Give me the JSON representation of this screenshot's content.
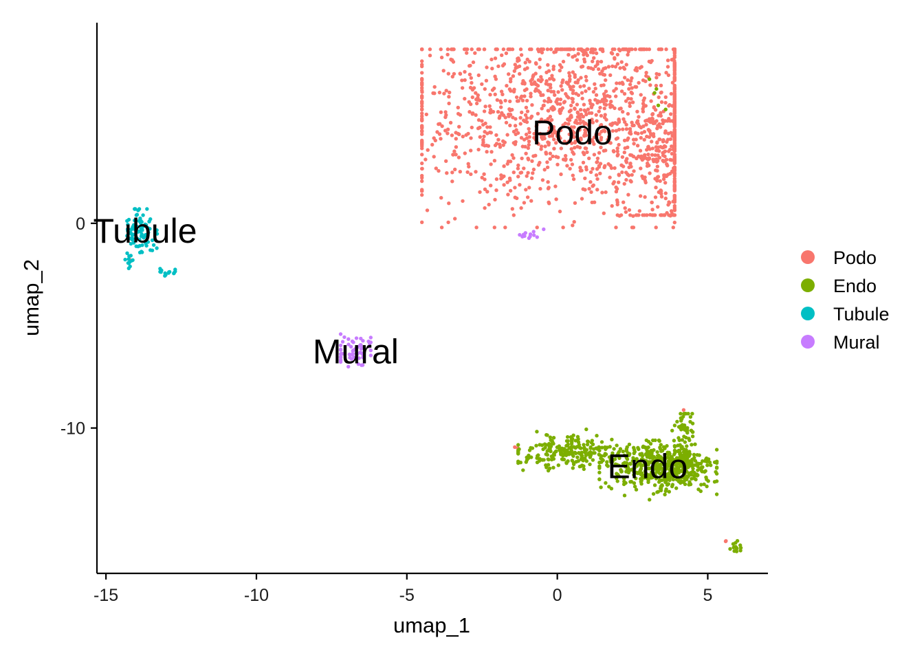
{
  "chart_data": {
    "type": "scatter",
    "title": "",
    "xlabel": "umap_1",
    "ylabel": "umap_2",
    "xlim": [
      -15.3,
      7.0
    ],
    "ylim": [
      -17.1,
      9.8
    ],
    "xticks": [
      -15,
      -10,
      -5,
      0,
      5
    ],
    "xtick_labels": [
      "-15",
      "-10",
      "-5",
      "0",
      "5"
    ],
    "yticks": [
      0,
      -10
    ],
    "ytick_labels": [
      "0",
      "-10"
    ],
    "grid": false,
    "legend_position": "right",
    "series": [
      {
        "name": "Podo",
        "color": "#F8766D",
        "clusters": [
          {
            "cx": 0.8,
            "cy": 5.3,
            "sx": 3.0,
            "sy": 2.3,
            "n": 1400,
            "range_x": [
              -4.5,
              3.9
            ],
            "range_y": [
              -0.2,
              8.5
            ]
          },
          {
            "cx": 3.4,
            "cy": 2.5,
            "sx": 0.7,
            "sy": 1.8,
            "n": 180,
            "range_x": [
              2.0,
              3.9
            ],
            "range_y": [
              0.4,
              5.0
            ]
          },
          {
            "cx": 4.2,
            "cy": -9.1,
            "sx": 0.05,
            "sy": 0.1,
            "n": 1
          },
          {
            "cx": -1.3,
            "cy": -10.8,
            "sx": 0.05,
            "sy": 0.1,
            "n": 2
          },
          {
            "cx": 5.6,
            "cy": -15.5,
            "sx": 0.05,
            "sy": 0.05,
            "n": 2
          },
          {
            "cx": -14.3,
            "cy": -1.8,
            "sx": 0.05,
            "sy": 0.1,
            "n": 1
          }
        ]
      },
      {
        "name": "Endo",
        "color": "#7CAE00",
        "clusters": [
          {
            "cx": 3.5,
            "cy": -11.9,
            "sx": 0.9,
            "sy": 0.6,
            "n": 520,
            "range_x": [
              1.4,
              5.3
            ],
            "range_y": [
              -13.5,
              -10.6
            ]
          },
          {
            "cx": 0.5,
            "cy": -11.2,
            "sx": 0.9,
            "sy": 0.4,
            "n": 230,
            "range_x": [
              -1.3,
              2.3
            ],
            "range_y": [
              -12.3,
              -10.0
            ]
          },
          {
            "cx": 4.2,
            "cy": -10.2,
            "sx": 0.15,
            "sy": 0.6,
            "n": 50,
            "range_x": [
              3.8,
              4.5
            ],
            "range_y": [
              -11.5,
              -9.3
            ]
          },
          {
            "cx": 5.9,
            "cy": -15.8,
            "sx": 0.12,
            "sy": 0.12,
            "n": 14,
            "range_x": [
              5.7,
              6.1
            ],
            "range_y": [
              -16.1,
              -15.5
            ]
          },
          {
            "cx": 3.3,
            "cy": 6.3,
            "sx": 0.2,
            "sy": 0.5,
            "n": 5,
            "range_x": [
              2.9,
              3.6
            ],
            "range_y": [
              5.5,
              7.2
            ]
          }
        ]
      },
      {
        "name": "Tubule",
        "color": "#00BFC4",
        "clusters": [
          {
            "cx": -13.9,
            "cy": -0.3,
            "sx": 0.25,
            "sy": 0.6,
            "n": 90,
            "range_x": [
              -14.3,
              -13.3
            ],
            "range_y": [
              -1.6,
              0.7
            ]
          },
          {
            "cx": -14.2,
            "cy": -1.8,
            "sx": 0.1,
            "sy": 0.2,
            "n": 10,
            "range_x": [
              -14.4,
              -13.9
            ],
            "range_y": [
              -2.2,
              -1.3
            ]
          },
          {
            "cx": -12.9,
            "cy": -2.4,
            "sx": 0.2,
            "sy": 0.1,
            "n": 14,
            "range_x": [
              -13.2,
              -12.7
            ],
            "range_y": [
              -2.6,
              -2.2
            ]
          }
        ]
      },
      {
        "name": "Mural",
        "color": "#C77CFF",
        "clusters": [
          {
            "cx": -6.7,
            "cy": -6.2,
            "sx": 0.35,
            "sy": 0.4,
            "n": 60,
            "range_x": [
              -7.2,
              -6.2
            ],
            "range_y": [
              -7.0,
              -5.4
            ]
          },
          {
            "cx": -1.0,
            "cy": -0.6,
            "sx": 0.25,
            "sy": 0.15,
            "n": 12,
            "range_x": [
              -1.5,
              -0.4
            ],
            "range_y": [
              -0.9,
              -0.1
            ]
          }
        ]
      }
    ],
    "annotations": [
      {
        "text": "Podo",
        "x": 0.5,
        "y": 4.3
      },
      {
        "text": "Tubule",
        "x": -13.7,
        "y": -0.5
      },
      {
        "text": "Mural",
        "x": -6.7,
        "y": -6.4
      },
      {
        "text": "Endo",
        "x": 3.0,
        "y": -12.0
      }
    ]
  }
}
